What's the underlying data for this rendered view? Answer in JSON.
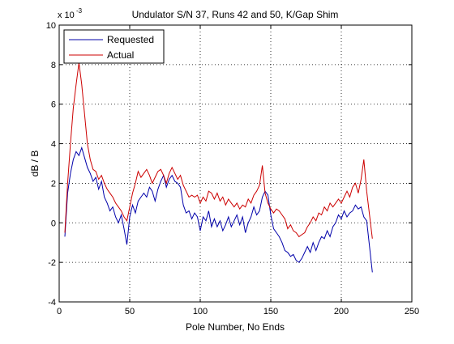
{
  "chart_data": {
    "type": "line",
    "title": "Undulator S/N 37, Runs 42 and 50, K/Gap Shim",
    "xlabel": "Pole Number, No Ends",
    "ylabel": "dB / B",
    "exponent_label": "x 10",
    "exponent_power": "-3",
    "xlim": [
      0,
      250
    ],
    "ylim": [
      -4,
      10
    ],
    "xticks": [
      "0",
      "50",
      "100",
      "150",
      "200",
      "250"
    ],
    "yticks": [
      "-4",
      "-2",
      "0",
      "2",
      "4",
      "6",
      "8",
      "10"
    ],
    "grid": true,
    "legend_position": "top-left",
    "series": [
      {
        "name": "Requested",
        "color": "#0000aa",
        "x": [
          4,
          6,
          8,
          10,
          12,
          14,
          16,
          18,
          20,
          22,
          24,
          26,
          28,
          30,
          32,
          34,
          36,
          38,
          40,
          42,
          44,
          46,
          48,
          50,
          52,
          54,
          56,
          58,
          60,
          62,
          64,
          66,
          68,
          70,
          72,
          74,
          76,
          78,
          80,
          82,
          84,
          86,
          88,
          90,
          92,
          94,
          96,
          98,
          100,
          102,
          104,
          106,
          108,
          110,
          112,
          114,
          116,
          118,
          120,
          122,
          124,
          126,
          128,
          130,
          132,
          134,
          136,
          138,
          140,
          142,
          144,
          146,
          148,
          150,
          152,
          154,
          156,
          158,
          160,
          162,
          164,
          166,
          168,
          170,
          172,
          174,
          176,
          178,
          180,
          182,
          184,
          186,
          188,
          190,
          192,
          194,
          196,
          198,
          200,
          202,
          204,
          206,
          208,
          210,
          212,
          214,
          216,
          218,
          220,
          222
        ],
        "y": [
          -0.7,
          1.5,
          2.5,
          3.2,
          3.6,
          3.4,
          3.8,
          3.3,
          2.8,
          2.5,
          2.1,
          2.3,
          1.7,
          2.1,
          1.3,
          1.0,
          0.6,
          0.8,
          0.3,
          0.0,
          0.4,
          -0.3,
          -1.1,
          0.3,
          0.9,
          0.5,
          1.1,
          1.3,
          1.5,
          1.3,
          1.8,
          1.6,
          1.1,
          1.7,
          2.1,
          2.4,
          1.8,
          2.2,
          2.4,
          2.1,
          2.0,
          1.8,
          0.9,
          0.5,
          0.6,
          0.2,
          0.5,
          0.3,
          -0.4,
          0.3,
          0.1,
          0.6,
          -0.2,
          0.2,
          -0.2,
          0.1,
          -0.4,
          -0.1,
          0.3,
          -0.2,
          0.1,
          0.4,
          -0.1,
          0.3,
          -0.5,
          0.0,
          0.3,
          0.8,
          0.4,
          0.6,
          1.3,
          1.6,
          1.4,
          0.4,
          -0.3,
          -0.5,
          -0.7,
          -1.0,
          -1.4,
          -1.5,
          -1.7,
          -1.6,
          -1.9,
          -2.0,
          -1.8,
          -1.5,
          -1.2,
          -1.5,
          -1.0,
          -1.4,
          -1.0,
          -0.7,
          -0.8,
          -0.4,
          -0.7,
          -0.2,
          0.0,
          0.4,
          0.2,
          0.6,
          0.3,
          0.5,
          0.6,
          0.9,
          0.7,
          0.8,
          0.3,
          0.1,
          -1.2,
          -2.5
        ]
      },
      {
        "name": "Actual",
        "color": "#cc0000",
        "x": [
          4,
          6,
          8,
          10,
          12,
          14,
          16,
          18,
          20,
          22,
          24,
          26,
          28,
          30,
          32,
          34,
          36,
          38,
          40,
          42,
          44,
          46,
          48,
          50,
          52,
          54,
          56,
          58,
          60,
          62,
          64,
          66,
          68,
          70,
          72,
          74,
          76,
          78,
          80,
          82,
          84,
          86,
          88,
          90,
          92,
          94,
          96,
          98,
          100,
          102,
          104,
          106,
          108,
          110,
          112,
          114,
          116,
          118,
          120,
          122,
          124,
          126,
          128,
          130,
          132,
          134,
          136,
          138,
          140,
          142,
          144,
          146,
          148,
          150,
          152,
          154,
          156,
          158,
          160,
          162,
          164,
          166,
          168,
          170,
          172,
          174,
          176,
          178,
          180,
          182,
          184,
          186,
          188,
          190,
          192,
          194,
          196,
          198,
          200,
          202,
          204,
          206,
          208,
          210,
          212,
          214,
          216,
          218,
          220,
          222
        ],
        "y": [
          -0.5,
          2.0,
          4.0,
          5.8,
          7.0,
          8.1,
          7.0,
          5.5,
          4.0,
          3.2,
          2.7,
          2.6,
          2.2,
          2.4,
          2.0,
          1.7,
          1.5,
          1.3,
          1.0,
          0.8,
          0.6,
          0.3,
          0.1,
          0.8,
          1.5,
          2.0,
          2.6,
          2.3,
          2.5,
          2.7,
          2.4,
          2.0,
          2.3,
          2.6,
          2.7,
          2.4,
          2.0,
          2.5,
          2.8,
          2.5,
          2.2,
          2.4,
          1.9,
          1.6,
          1.3,
          1.4,
          1.3,
          1.4,
          1.0,
          1.3,
          1.1,
          1.6,
          1.5,
          1.2,
          1.5,
          1.1,
          1.3,
          0.9,
          1.2,
          1.0,
          0.8,
          1.0,
          0.7,
          0.9,
          0.8,
          1.2,
          1.0,
          1.4,
          1.6,
          1.9,
          2.9,
          1.5,
          1.0,
          0.7,
          0.5,
          0.7,
          0.6,
          0.4,
          0.2,
          -0.3,
          -0.1,
          -0.4,
          -0.5,
          -0.7,
          -0.6,
          -0.5,
          -0.2,
          0.0,
          0.3,
          0.1,
          0.5,
          0.4,
          0.8,
          0.6,
          1.0,
          0.8,
          1.0,
          1.2,
          1.0,
          1.3,
          1.6,
          1.3,
          1.8,
          2.0,
          1.5,
          2.2,
          3.2,
          1.6,
          0.4,
          -0.8
        ]
      }
    ]
  }
}
